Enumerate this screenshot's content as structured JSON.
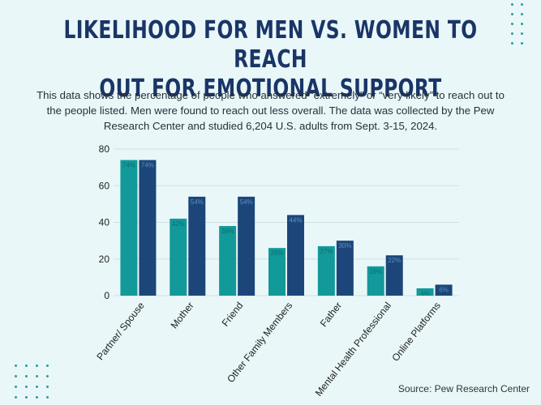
{
  "title_line1": "LIKELIHOOD FOR MEN VS. WOMEN TO REACH",
  "title_line2": "OUT FOR EMOTIONAL SUPPORT",
  "description": "This data shows the percentage of people who answered “extremely” or “very likely” to reach out to the people listed. Men were found to reach out less overall. The data was collected by the Pew Research Center and studied 6,204 U.S. adults from Sept. 3-15, 2024.",
  "source": "Source: Pew Research Center",
  "colors": {
    "series1": "#12999a",
    "series2": "#1c4679",
    "title": "#1a3566",
    "background": "#e9f7f9"
  },
  "chart_data": {
    "type": "bar",
    "categories": [
      "Partner/ Spouse",
      "Mother",
      "Friend",
      "Other Family Members",
      "Father",
      "Mental Health Professional",
      "Online Platforms"
    ],
    "series": [
      {
        "values": [
          74,
          42,
          38,
          26,
          27,
          16,
          4
        ],
        "labels": [
          "74%",
          "42%",
          "38%",
          "26%",
          "27%",
          "16%",
          "4%"
        ]
      },
      {
        "values": [
          74,
          54,
          54,
          44,
          30,
          22,
          6
        ],
        "labels": [
          "74%",
          "54%",
          "54%",
          "44%",
          "30%",
          "22%",
          "6%"
        ]
      }
    ],
    "yticks": [
      "0",
      "20",
      "40",
      "60",
      "80"
    ],
    "ylim": [
      0,
      80
    ],
    "grid": true,
    "legend": "none",
    "title": "",
    "xlabel": "",
    "ylabel": ""
  }
}
